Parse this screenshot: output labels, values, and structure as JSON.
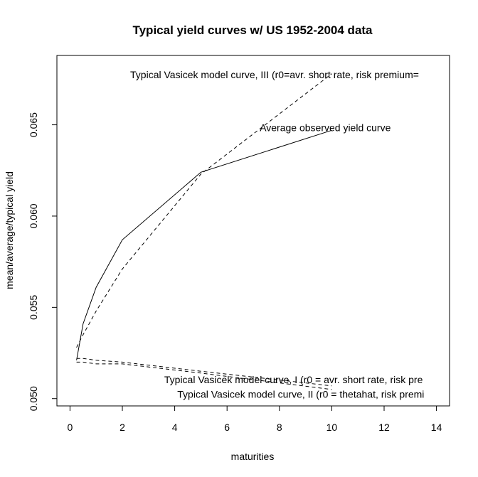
{
  "chart_data": {
    "type": "line",
    "title": "Typical yield curves w/ US  1952-2004 data",
    "xlabel": "maturities",
    "ylabel": "mean/average/typical yield",
    "xlim": [
      -0.5,
      14.5
    ],
    "ylim": [
      0.0496,
      0.0688
    ],
    "x_ticks": [
      0,
      2,
      4,
      6,
      8,
      10,
      12,
      14
    ],
    "y_ticks": [
      0.05,
      0.055,
      0.06,
      0.065
    ],
    "x_tick_labels": [
      "0",
      "2",
      "4",
      "6",
      "8",
      "10",
      "12",
      "14"
    ],
    "y_tick_labels": [
      "0.050",
      "0.055",
      "0.060",
      "0.065"
    ],
    "grid": false,
    "series": [
      {
        "line_style": "solid",
        "x": [
          0.25,
          0.5,
          1,
          2,
          5,
          10
        ],
        "y": [
          0.0521,
          0.0541,
          0.0561,
          0.0587,
          0.0624,
          0.0647
        ]
      },
      {
        "line_style": "dashed",
        "x": [
          0.25,
          0.5,
          1,
          2,
          5,
          10
        ],
        "y": [
          0.0528,
          0.0535,
          0.0548,
          0.0571,
          0.0623,
          0.0678
        ]
      },
      {
        "line_style": "dashed",
        "x": [
          0.25,
          0.5,
          1,
          2,
          5,
          10
        ],
        "y": [
          0.0522,
          0.0522,
          0.0521,
          0.052,
          0.0515,
          0.0507
        ]
      },
      {
        "line_style": "dashed",
        "x": [
          0.25,
          0.5,
          1,
          2,
          5,
          10
        ],
        "y": [
          0.052,
          0.052,
          0.0519,
          0.0519,
          0.0514,
          0.0505
        ]
      }
    ],
    "annotations": [
      {
        "text": "Typical Vasicek model curve, III (r0=avr. short rate, risk premium=",
        "x": 2.3,
        "y": 0.06755
      },
      {
        "text": "Average observed yield curve",
        "x": 7.25,
        "y": 0.06465
      },
      {
        "text": "Typical Vasicek model curve, I (r0 = avr. short rate, risk pre",
        "x": 3.6,
        "y": 0.05085
      },
      {
        "text": "Typical Vasicek model curve, II (r0 = thetahat, risk premi",
        "x": 4.1,
        "y": 0.05005
      }
    ]
  }
}
